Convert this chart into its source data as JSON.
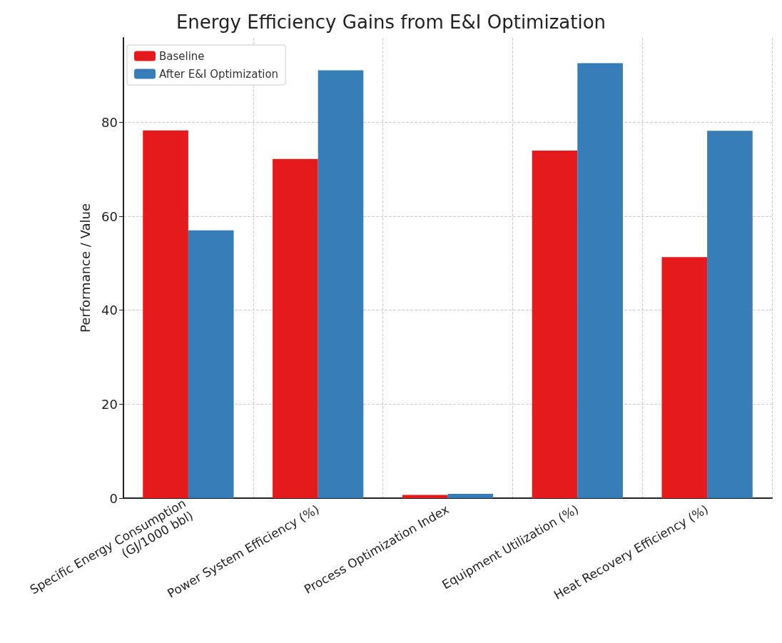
{
  "chart_data": {
    "type": "bar",
    "title": "Energy Efficiency Gains from E&I Optimization",
    "ylabel": "Performance / Value",
    "categories": [
      "Specific Energy Consumption\n(GJ/1000 bbl)",
      "Power System Efficiency (%)",
      "Process Optimization Index",
      "Equipment Utilization (%)",
      "Heat Recovery Efficiency (%)"
    ],
    "series": [
      {
        "name": "Baseline",
        "color": "#e41a1c",
        "values": [
          78.3,
          72.2,
          0.7,
          74,
          51.3
        ]
      },
      {
        "name": "After E&I Optimization",
        "color": "#377eb8",
        "values": [
          57,
          91.1,
          0.9,
          92.6,
          78.2
        ]
      }
    ],
    "ylim": [
      0,
      98
    ],
    "yticks": [
      0,
      20,
      40,
      60,
      80
    ],
    "grid": true,
    "legend": "top left"
  }
}
